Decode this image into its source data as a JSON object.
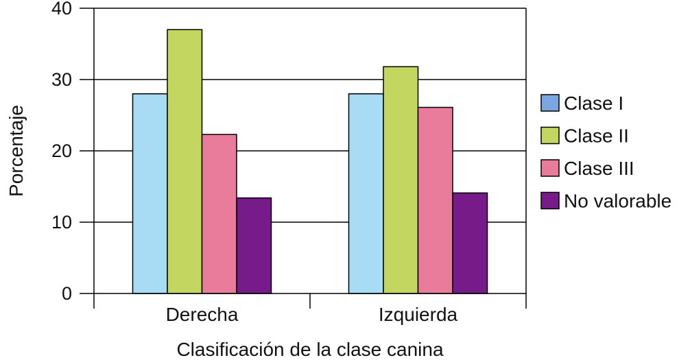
{
  "chart_data": {
    "type": "bar",
    "categories": [
      "Derecha",
      "Izquierda"
    ],
    "series": [
      {
        "name": "Clase I",
        "values": [
          28,
          28
        ],
        "color": "#a8dcf4",
        "legend_color": "#7aa7e0"
      },
      {
        "name": "Clase II",
        "values": [
          37,
          31.8
        ],
        "color": "#c3d660"
      },
      {
        "name": "Clase III",
        "values": [
          22.3,
          26.1
        ],
        "color": "#e87c9a"
      },
      {
        "name": "No valorable",
        "values": [
          13.4,
          14.1
        ],
        "color": "#781b8a"
      }
    ],
    "title": "",
    "xlabel": "Clasificación de la clase canina",
    "ylabel": "Porcentaje",
    "ylim": [
      0,
      40
    ],
    "yticks": [
      0,
      10,
      20,
      30,
      40
    ],
    "grid": true,
    "legend": "right"
  }
}
